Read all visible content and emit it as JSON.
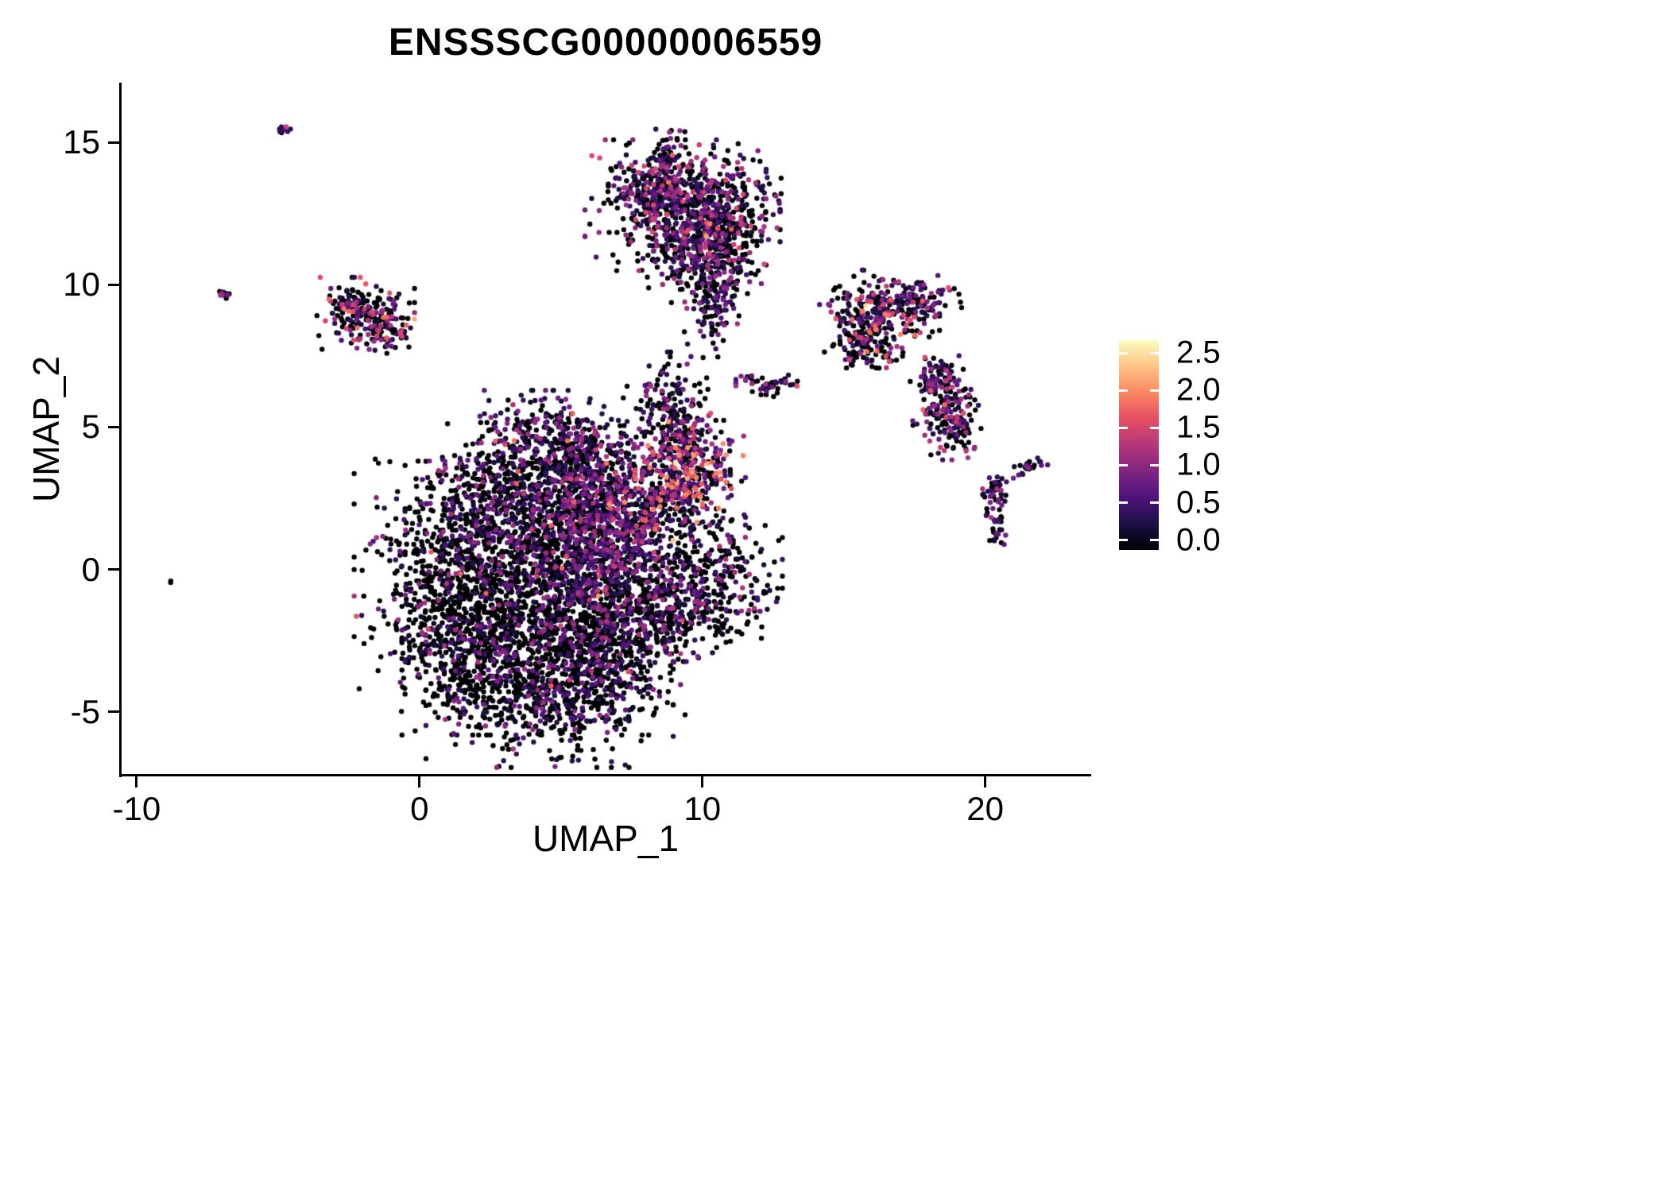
{
  "chart_data": {
    "type": "scatter",
    "title": "ENSSSCG00000006559",
    "xlabel": "UMAP_1",
    "ylabel": "UMAP_2",
    "x_ticks": [
      -10,
      0,
      10,
      20
    ],
    "y_ticks": [
      -5,
      0,
      5,
      10,
      15
    ],
    "xlim": [
      -10.56,
      23.72
    ],
    "ylim": [
      -7.22,
      17.08
    ],
    "grid": false,
    "legend": {
      "position": "right",
      "ticks": [
        "0.0",
        "0.5",
        "1.0",
        "1.5",
        "2.0",
        "2.5"
      ],
      "vmin": 0.0,
      "vmax": 2.6,
      "bar_range": [
        -0.13,
        2.67
      ]
    },
    "colormap": {
      "name": "magma",
      "stops": [
        [
          0.0,
          "#000004"
        ],
        [
          0.125,
          "#1c1044"
        ],
        [
          0.25,
          "#4f127b"
        ],
        [
          0.375,
          "#812581"
        ],
        [
          0.5,
          "#b5367a"
        ],
        [
          0.625,
          "#e55064"
        ],
        [
          0.75,
          "#fb8761"
        ],
        [
          0.875,
          "#fec287"
        ],
        [
          1.0,
          "#fcfdbf"
        ]
      ]
    },
    "point_radius": 3.2,
    "seed": 42,
    "clusters": [
      {
        "cx": 1.6,
        "cy": -0.6,
        "rx": 1.7,
        "ry": 2.0,
        "rot": 0,
        "n": 850,
        "p0": 0.78,
        "vmax": 1.2
      },
      {
        "cx": 2.6,
        "cy": -2.6,
        "rx": 1.4,
        "ry": 1.4,
        "rot": 0,
        "n": 480,
        "p0": 0.8,
        "vmax": 1.1
      },
      {
        "cx": 4.6,
        "cy": -4.2,
        "rx": 1.9,
        "ry": 1.2,
        "rot": 0,
        "n": 650,
        "p0": 0.72,
        "vmax": 1.1
      },
      {
        "cx": 6.4,
        "cy": -2.6,
        "rx": 1.3,
        "ry": 1.4,
        "rot": 0,
        "n": 420,
        "p0": 0.74,
        "vmax": 1.1
      },
      {
        "cx": 6.7,
        "cy": -0.6,
        "rx": 1.1,
        "ry": 1.5,
        "rot": 0,
        "n": 420,
        "p0": 0.52,
        "vmax": 1.3
      },
      {
        "cx": 4.9,
        "cy": 0.6,
        "rx": 1.5,
        "ry": 1.4,
        "rot": 0,
        "n": 550,
        "p0": 0.6,
        "vmax": 1.2
      },
      {
        "cx": 3.4,
        "cy": 2.4,
        "rx": 1.7,
        "ry": 1.2,
        "rot": 0,
        "n": 550,
        "p0": 0.66,
        "vmax": 1.2
      },
      {
        "cx": 5.4,
        "cy": 3.4,
        "rx": 1.2,
        "ry": 0.9,
        "rot": 0,
        "n": 320,
        "p0": 0.5,
        "vmax": 1.3
      },
      {
        "cx": 4.6,
        "cy": 4.8,
        "rx": 1.1,
        "ry": 0.65,
        "rot": 0,
        "n": 220,
        "p0": 0.42,
        "vmax": 1.3
      },
      {
        "cx": 6.3,
        "cy": 2.0,
        "rx": 0.8,
        "ry": 1.1,
        "rot": 0,
        "n": 230,
        "p0": 0.42,
        "vmax": 1.3
      },
      {
        "cx": 7.7,
        "cy": 1.4,
        "rx": 0.55,
        "ry": 1.5,
        "rot": -0.5,
        "n": 190,
        "p0": 0.45,
        "vmax": 1.5
      },
      {
        "cx": 8.8,
        "cy": 2.9,
        "rx": 0.95,
        "ry": 1.0,
        "rot": 0,
        "n": 270,
        "p0": 0.36,
        "vmax": 2.1
      },
      {
        "cx": 9.8,
        "cy": 3.4,
        "rx": 0.75,
        "ry": 0.8,
        "rot": 0,
        "n": 180,
        "p0": 0.36,
        "vmax": 2.1
      },
      {
        "cx": 10.3,
        "cy": -0.4,
        "rx": 1.1,
        "ry": 1.1,
        "rot": 0,
        "n": 340,
        "p0": 0.62,
        "vmax": 1.3
      },
      {
        "cx": 9.0,
        "cy": -1.4,
        "rx": 0.8,
        "ry": 0.8,
        "rot": 0,
        "n": 170,
        "p0": 0.7,
        "vmax": 1.0
      },
      {
        "cx": 8.7,
        "cy": 5.8,
        "rx": 0.65,
        "ry": 0.8,
        "rot": 0,
        "n": 140,
        "p0": 0.66,
        "vmax": 1.2
      },
      {
        "cx": 9.3,
        "cy": 4.8,
        "rx": 0.5,
        "ry": 0.5,
        "rot": 0,
        "n": 80,
        "p0": 0.5,
        "vmax": 1.5
      },
      {
        "cx": 9.3,
        "cy": 12.8,
        "rx": 1.5,
        "ry": 1.0,
        "rot": 0,
        "n": 520,
        "p0": 0.46,
        "vmax": 1.6
      },
      {
        "cx": 8.4,
        "cy": 13.4,
        "rx": 0.75,
        "ry": 0.55,
        "rot": 0,
        "n": 160,
        "p0": 0.5,
        "vmax": 1.3
      },
      {
        "cx": 10.6,
        "cy": 12.2,
        "rx": 0.95,
        "ry": 0.95,
        "rot": 0,
        "n": 240,
        "p0": 0.5,
        "vmax": 1.4
      },
      {
        "cx": 9.9,
        "cy": 10.9,
        "rx": 0.95,
        "ry": 0.75,
        "rot": 0,
        "n": 200,
        "p0": 0.55,
        "vmax": 1.2
      },
      {
        "cx": 10.4,
        "cy": 9.4,
        "rx": 0.45,
        "ry": 0.85,
        "rot": 0,
        "n": 110,
        "p0": 0.5,
        "vmax": 1.2
      },
      {
        "cx": 8.8,
        "cy": 14.6,
        "rx": 0.28,
        "ry": 0.38,
        "rot": 0,
        "n": 40,
        "p0": 0.5,
        "vmax": 1.2
      },
      {
        "cx": -1.9,
        "cy": 9.0,
        "rx": 0.75,
        "ry": 0.55,
        "rot": 0,
        "n": 150,
        "p0": 0.55,
        "vmax": 2.0
      },
      {
        "cx": -1.2,
        "cy": 8.4,
        "rx": 0.45,
        "ry": 0.35,
        "rot": 0,
        "n": 65,
        "p0": 0.5,
        "vmax": 1.5
      },
      {
        "cx": -2.6,
        "cy": 9.4,
        "rx": 0.35,
        "ry": 0.28,
        "rot": 0,
        "n": 45,
        "p0": 0.6,
        "vmax": 1.8
      },
      {
        "cx": -6.9,
        "cy": 9.7,
        "rx": 0.12,
        "ry": 0.12,
        "rot": 0,
        "n": 12,
        "p0": 0.4,
        "vmax": 1.2
      },
      {
        "cx": -4.9,
        "cy": 15.4,
        "rx": 0.16,
        "ry": 0.07,
        "rot": 0.6,
        "n": 10,
        "p0": 0.3,
        "vmax": 1.0
      },
      {
        "cx": -8.8,
        "cy": -0.4,
        "rx": 0.04,
        "ry": 0.04,
        "rot": 0,
        "n": 2,
        "p0": 0.5,
        "vmax": 0.9
      },
      {
        "cx": 16.2,
        "cy": 8.8,
        "rx": 0.95,
        "ry": 0.75,
        "rot": 0,
        "n": 260,
        "p0": 0.5,
        "vmax": 1.9
      },
      {
        "cx": 15.6,
        "cy": 8.0,
        "rx": 0.45,
        "ry": 0.4,
        "rot": 0,
        "n": 60,
        "p0": 0.6,
        "vmax": 1.5
      },
      {
        "cx": 17.6,
        "cy": 9.4,
        "rx": 0.65,
        "ry": 0.38,
        "rot": 0.2,
        "n": 90,
        "p0": 0.55,
        "vmax": 1.3
      },
      {
        "cx": 18.5,
        "cy": 5.9,
        "rx": 0.5,
        "ry": 0.7,
        "rot": 0,
        "n": 120,
        "p0": 0.46,
        "vmax": 1.6
      },
      {
        "cx": 19.0,
        "cy": 5.0,
        "rx": 0.4,
        "ry": 0.5,
        "rot": 0,
        "n": 75,
        "p0": 0.5,
        "vmax": 1.4
      },
      {
        "cx": 18.2,
        "cy": 6.8,
        "rx": 0.3,
        "ry": 0.3,
        "rot": 0,
        "n": 40,
        "p0": 0.5,
        "vmax": 1.5
      },
      {
        "cx": 20.3,
        "cy": 2.7,
        "rx": 0.22,
        "ry": 0.38,
        "rot": 0,
        "n": 42,
        "p0": 0.5,
        "vmax": 1.3
      },
      {
        "cx": 20.4,
        "cy": 1.3,
        "rx": 0.14,
        "ry": 0.28,
        "rot": 0,
        "n": 22,
        "p0": 0.55,
        "vmax": 1.0
      },
      {
        "cx": 21.5,
        "cy": 3.6,
        "rx": 0.3,
        "ry": 0.1,
        "rot": 0.35,
        "n": 28,
        "p0": 0.4,
        "vmax": 1.2
      },
      {
        "cx": 12.6,
        "cy": 6.5,
        "rx": 0.38,
        "ry": 0.18,
        "rot": 0.1,
        "n": 32,
        "p0": 0.5,
        "vmax": 1.3
      },
      {
        "cx": 11.6,
        "cy": 6.6,
        "rx": 0.18,
        "ry": 0.13,
        "rot": 0,
        "n": 14,
        "p0": 0.5,
        "vmax": 1.2
      }
    ]
  }
}
